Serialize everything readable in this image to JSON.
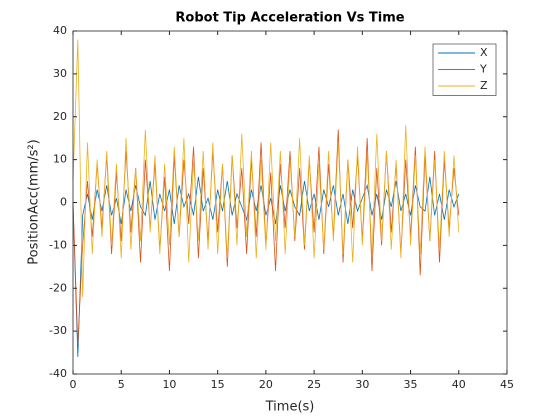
{
  "chart_data": {
    "type": "line",
    "title": "Robot Tip Acceleration Vs Time",
    "xlabel": "Time(s)",
    "ylabel": "PositionAcc(mm/s²)",
    "x": [
      0,
      0.5,
      1,
      1.5,
      2,
      2.5,
      3,
      3.5,
      4,
      4.5,
      5,
      5.5,
      6,
      6.5,
      7,
      7.5,
      8,
      8.5,
      9,
      9.5,
      10,
      10.5,
      11,
      11.5,
      12,
      12.5,
      13,
      13.5,
      14,
      14.5,
      15,
      15.5,
      16,
      16.5,
      17,
      17.5,
      18,
      18.5,
      19,
      19.5,
      20,
      20.5,
      21,
      21.5,
      22,
      22.5,
      23,
      23.5,
      24,
      24.5,
      25,
      25.5,
      26,
      26.5,
      27,
      27.5,
      28,
      28.5,
      29,
      29.5,
      30,
      30.5,
      31,
      31.5,
      32,
      32.5,
      33,
      33.5,
      34,
      34.5,
      35,
      35.5,
      36,
      36.5,
      37,
      37.5,
      38,
      38.5,
      39,
      39.5,
      40
    ],
    "series": [
      {
        "name": "X",
        "color": "#0072bd",
        "values": [
          0,
          -36,
          -3,
          2,
          -4,
          3,
          -2,
          4,
          -3,
          1,
          -5,
          3,
          -2,
          4,
          -1,
          -3,
          5,
          -4,
          2,
          -2,
          3,
          -5,
          4,
          -1,
          2,
          -3,
          6,
          -2,
          1,
          -4,
          3,
          -2,
          5,
          -3,
          2,
          -1,
          -4,
          3,
          -2,
          4,
          -3,
          1,
          -5,
          4,
          -2,
          3,
          -1,
          -3,
          5,
          -2,
          2,
          -4,
          3,
          -1,
          4,
          -3,
          2,
          -5,
          3,
          -2,
          1,
          4,
          -3,
          2,
          -4,
          3,
          -1,
          5,
          -2,
          2,
          -3,
          4,
          -1,
          -2,
          6,
          -3,
          2,
          -4,
          3,
          -1,
          2
        ]
      },
      {
        "name": "Y",
        "color": "#d95319",
        "values": [
          0,
          -33,
          -10,
          5,
          -8,
          9,
          -6,
          11,
          -12,
          7,
          -9,
          12,
          -7,
          8,
          -14,
          10,
          -6,
          9,
          -11,
          6,
          -16,
          11,
          -8,
          10,
          -5,
          13,
          -13,
          8,
          -9,
          12,
          -7,
          9,
          -15,
          11,
          -6,
          8,
          -12,
          10,
          -8,
          14,
          -10,
          7,
          -16,
          9,
          -6,
          12,
          -9,
          8,
          -11,
          10,
          -7,
          13,
          -12,
          9,
          -8,
          17,
          -14,
          10,
          -6,
          11,
          -9,
          15,
          -16,
          8,
          -10,
          12,
          -7,
          9,
          -12,
          10,
          -8,
          13,
          -17,
          11,
          -9,
          12,
          -14,
          10,
          -6,
          8,
          -3
        ]
      },
      {
        "name": "Z",
        "color": "#edb120",
        "values": [
          5,
          38,
          -22,
          14,
          -12,
          10,
          -8,
          12,
          -10,
          9,
          -13,
          15,
          -11,
          8,
          -9,
          17,
          -7,
          11,
          -12,
          9,
          -10,
          13,
          -8,
          15,
          -14,
          10,
          -9,
          12,
          -11,
          14,
          -12,
          9,
          -13,
          11,
          -10,
          16,
          -8,
          12,
          -13,
          10,
          -11,
          14,
          -9,
          12,
          -12,
          10,
          -8,
          15,
          -10,
          11,
          -13,
          9,
          -11,
          12,
          -9,
          14,
          -12,
          10,
          -14,
          13,
          -10,
          11,
          -12,
          16,
          -9,
          12,
          -11,
          10,
          -13,
          18,
          -10,
          11,
          -12,
          13,
          -9,
          10,
          -11,
          12,
          -8,
          11,
          -7
        ]
      }
    ],
    "xlim": [
      0,
      45
    ],
    "xticks": [
      0,
      5,
      10,
      15,
      20,
      25,
      30,
      35,
      40,
      45
    ],
    "ylim": [
      -40,
      40
    ],
    "yticks": [
      -40,
      -30,
      -20,
      -10,
      0,
      10,
      20,
      30,
      40
    ],
    "legend": "upper right",
    "box": true
  }
}
